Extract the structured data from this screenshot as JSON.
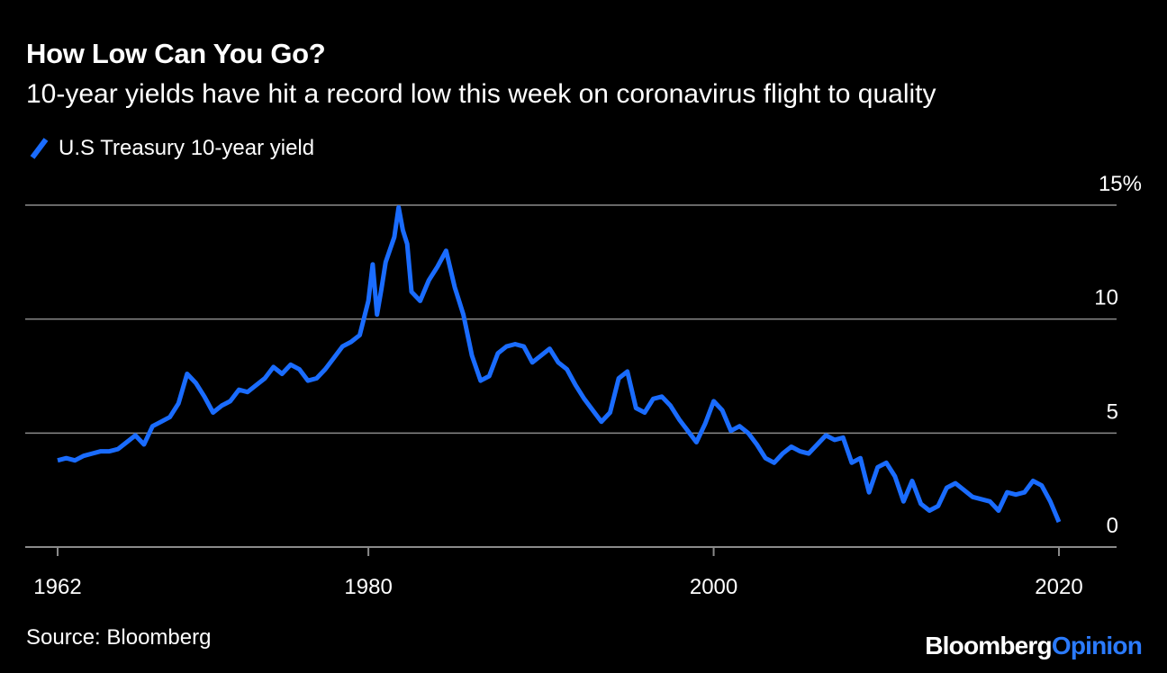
{
  "header": {
    "title": "How Low Can You Go?",
    "subtitle": "10-year yields have hit a record low this week on coronavirus flight to quality"
  },
  "legend": {
    "label": "U.S Treasury 10-year yield"
  },
  "footer": {
    "source": "Source: Bloomberg",
    "brand_part1": "Bloomberg",
    "brand_part2": "Opinion"
  },
  "colors": {
    "background": "#000000",
    "series": "#1a6cff",
    "grid": "#8a8a8a",
    "text": "#ffffff",
    "brand_accent": "#2b7bff"
  },
  "chart_data": {
    "type": "line",
    "title": "How Low Can You Go?",
    "subtitle": "10-year yields have hit a record low this week on coronavirus flight to quality",
    "xlabel": "",
    "ylabel": "",
    "xlim": [
      1962,
      2020
    ],
    "ylim": [
      0,
      15
    ],
    "grid": true,
    "legend_position": "top-left",
    "x_ticks": [
      1962,
      1980,
      2000,
      2020
    ],
    "x_tick_labels": [
      "1962",
      "1980",
      "2000",
      "2020"
    ],
    "y_ticks": [
      0,
      5,
      10,
      15
    ],
    "y_tick_labels": [
      "0",
      "5",
      "10",
      "15%"
    ],
    "series": [
      {
        "name": "U.S Treasury 10-year yield",
        "color": "#1a6cff",
        "x": [
          1962.0,
          1962.5,
          1963.0,
          1963.5,
          1964.0,
          1964.5,
          1965.0,
          1965.5,
          1966.0,
          1966.5,
          1967.0,
          1967.5,
          1968.0,
          1968.5,
          1969.0,
          1969.5,
          1970.0,
          1970.5,
          1971.0,
          1971.5,
          1972.0,
          1972.5,
          1973.0,
          1973.5,
          1974.0,
          1974.5,
          1975.0,
          1975.5,
          1976.0,
          1976.5,
          1977.0,
          1977.5,
          1978.0,
          1978.5,
          1979.0,
          1979.5,
          1980.0,
          1980.25,
          1980.5,
          1980.75,
          1981.0,
          1981.5,
          1981.75,
          1982.0,
          1982.25,
          1982.5,
          1983.0,
          1983.5,
          1984.0,
          1984.5,
          1985.0,
          1985.5,
          1986.0,
          1986.5,
          1987.0,
          1987.5,
          1988.0,
          1988.5,
          1989.0,
          1989.5,
          1990.0,
          1990.5,
          1991.0,
          1991.5,
          1992.0,
          1992.5,
          1993.0,
          1993.5,
          1994.0,
          1994.5,
          1995.0,
          1995.5,
          1996.0,
          1996.5,
          1997.0,
          1997.5,
          1998.0,
          1998.5,
          1999.0,
          1999.5,
          2000.0,
          2000.5,
          2001.0,
          2001.5,
          2002.0,
          2002.5,
          2003.0,
          2003.5,
          2004.0,
          2004.5,
          2005.0,
          2005.5,
          2006.0,
          2006.5,
          2007.0,
          2007.5,
          2008.0,
          2008.5,
          2009.0,
          2009.5,
          2010.0,
          2010.5,
          2011.0,
          2011.5,
          2012.0,
          2012.5,
          2013.0,
          2013.5,
          2014.0,
          2014.5,
          2015.0,
          2015.5,
          2016.0,
          2016.5,
          2017.0,
          2017.5,
          2018.0,
          2018.5,
          2019.0,
          2019.5,
          2020.0
        ],
        "values": [
          3.8,
          3.9,
          3.8,
          4.0,
          4.1,
          4.2,
          4.2,
          4.3,
          4.6,
          4.9,
          4.5,
          5.3,
          5.5,
          5.7,
          6.3,
          7.6,
          7.2,
          6.6,
          5.9,
          6.2,
          6.4,
          6.9,
          6.8,
          7.1,
          7.4,
          7.9,
          7.6,
          8.0,
          7.8,
          7.3,
          7.4,
          7.8,
          8.3,
          8.8,
          9.0,
          9.3,
          10.8,
          12.4,
          10.2,
          11.3,
          12.5,
          13.6,
          14.9,
          13.9,
          13.3,
          11.2,
          10.8,
          11.7,
          12.3,
          13.0,
          11.4,
          10.2,
          8.4,
          7.3,
          7.5,
          8.5,
          8.8,
          8.9,
          8.8,
          8.1,
          8.4,
          8.7,
          8.1,
          7.8,
          7.1,
          6.5,
          6.0,
          5.5,
          5.9,
          7.4,
          7.7,
          6.1,
          5.9,
          6.5,
          6.6,
          6.2,
          5.6,
          5.1,
          4.6,
          5.4,
          6.4,
          6.0,
          5.1,
          5.3,
          5.0,
          4.5,
          3.9,
          3.7,
          4.1,
          4.4,
          4.2,
          4.1,
          4.5,
          4.9,
          4.7,
          4.8,
          3.7,
          3.9,
          2.4,
          3.5,
          3.7,
          3.1,
          2.0,
          2.9,
          1.9,
          1.6,
          1.8,
          2.6,
          2.8,
          2.5,
          2.2,
          2.1,
          2.0,
          1.6,
          2.4,
          2.3,
          2.4,
          2.9,
          2.7,
          2.0,
          1.1
        ]
      }
    ]
  }
}
